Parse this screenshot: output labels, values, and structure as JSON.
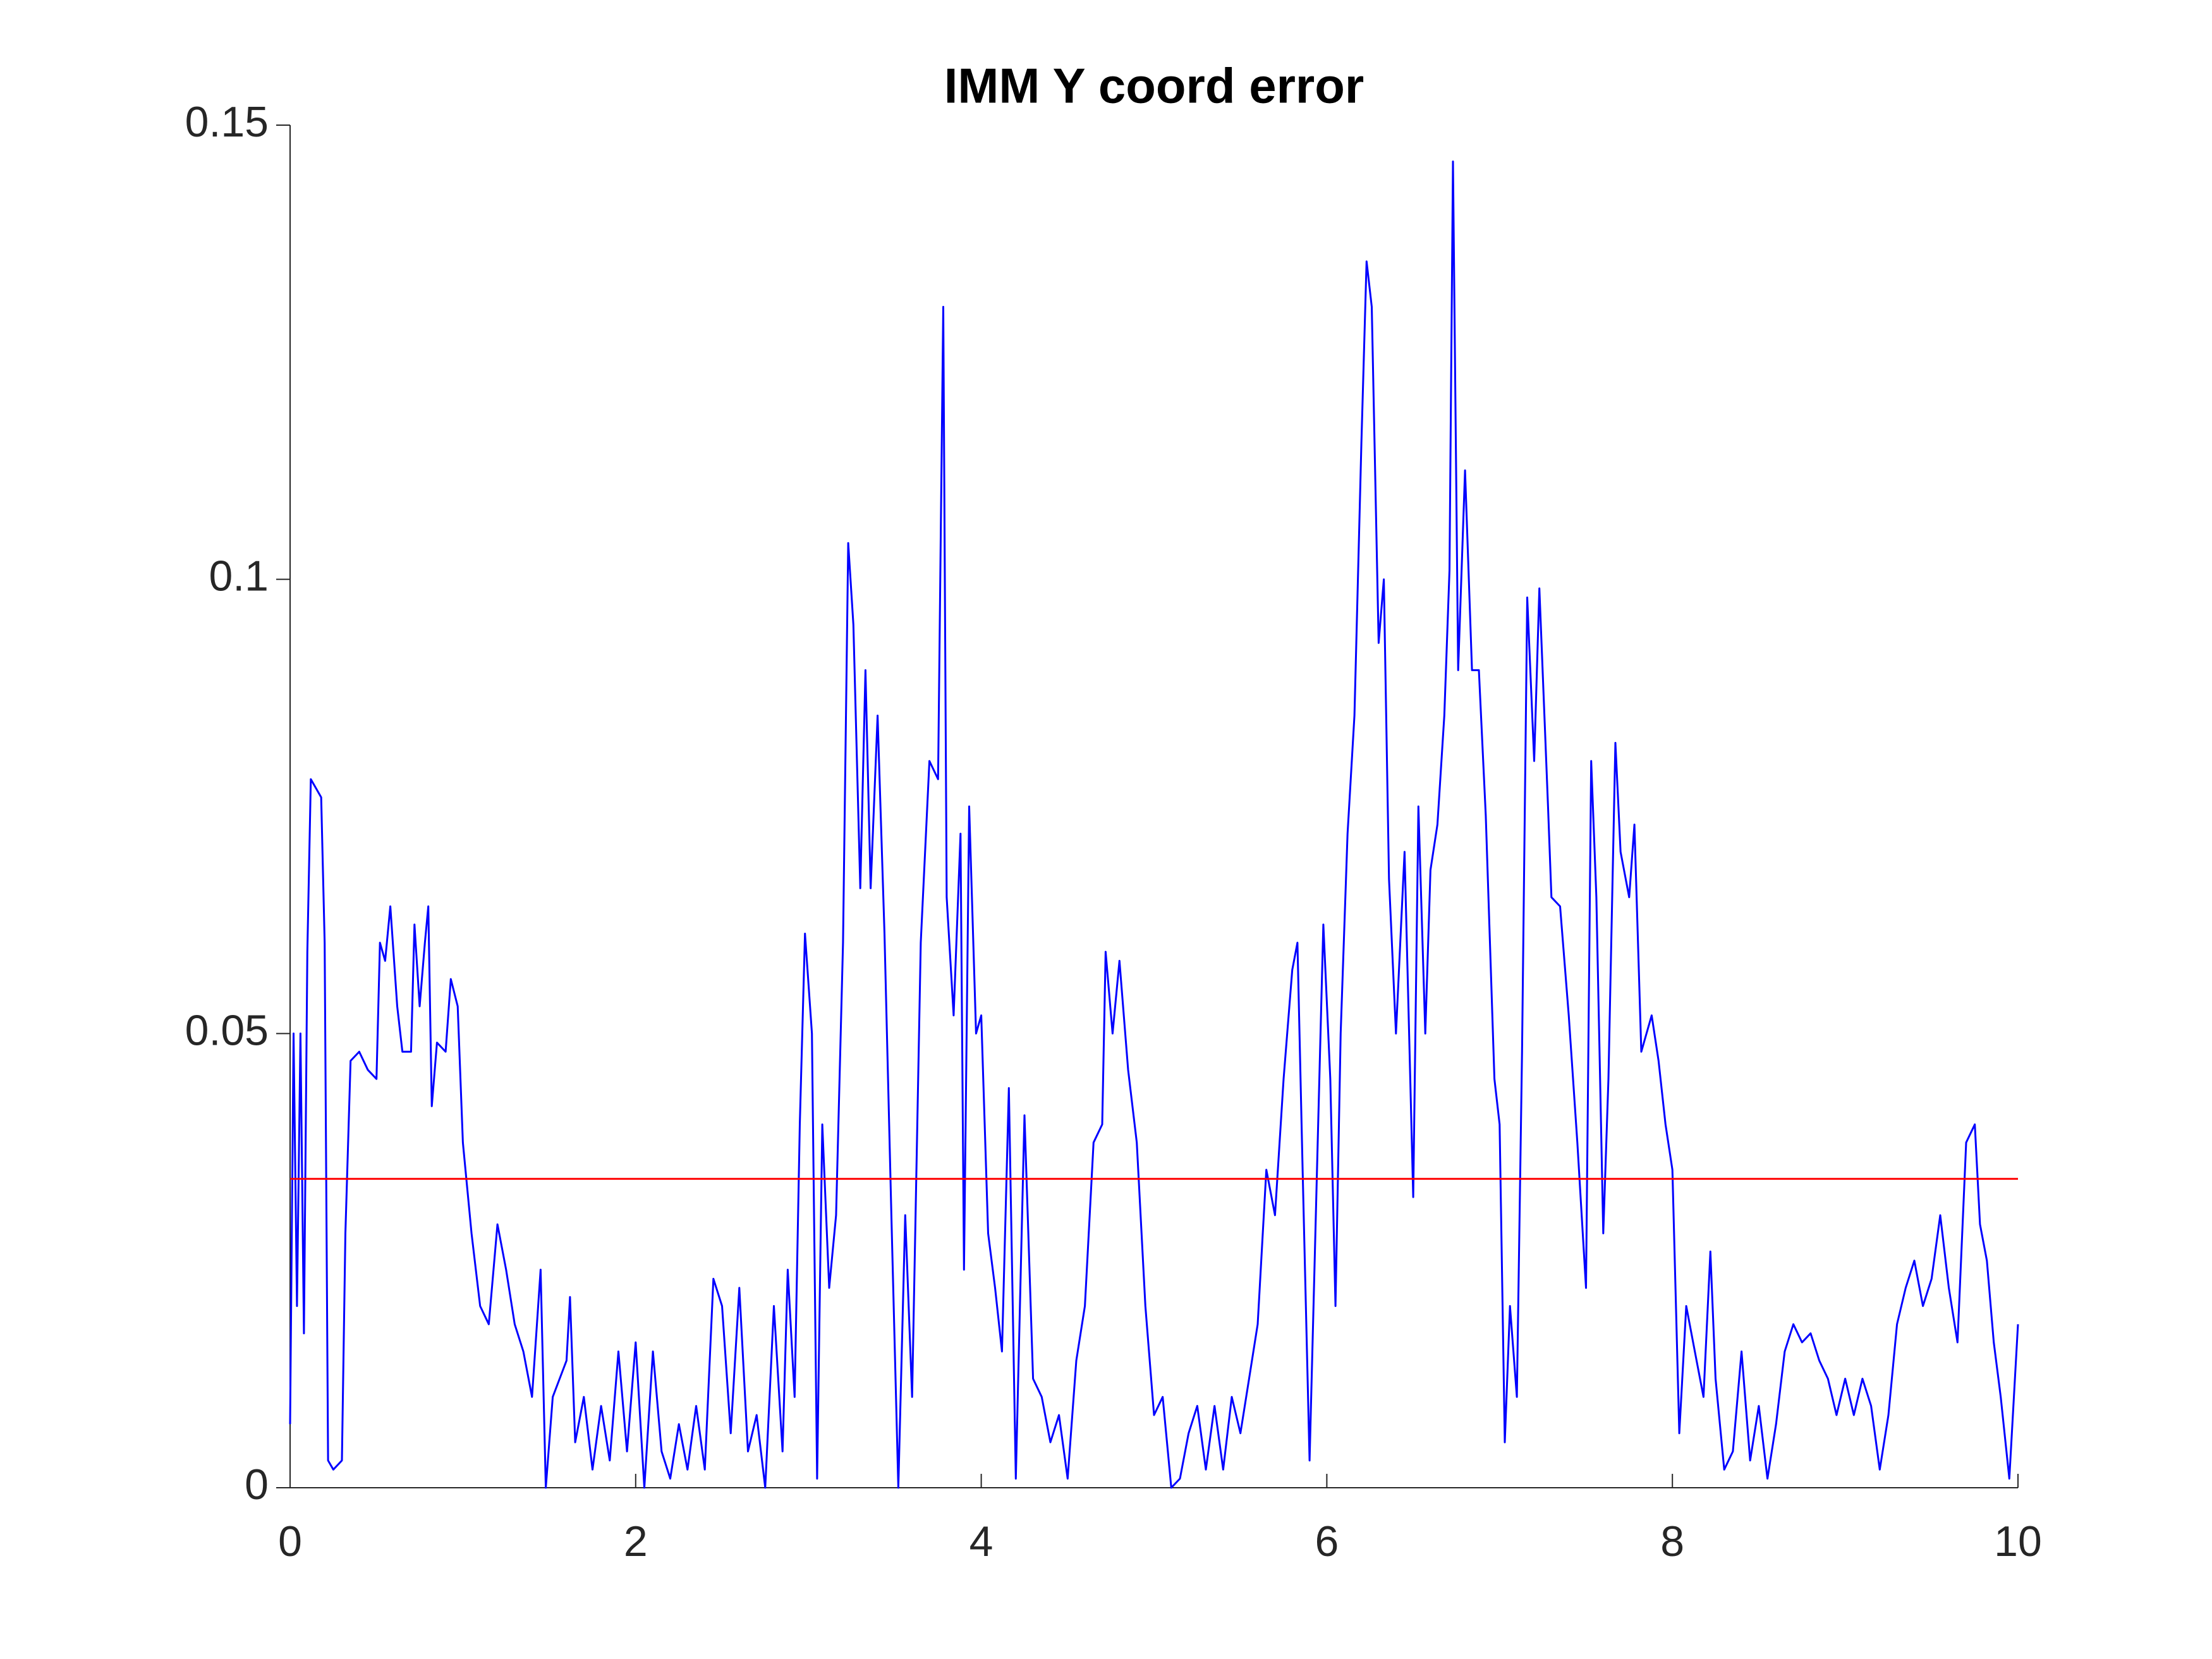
{
  "chart_data": {
    "type": "line",
    "title": "IMM Y coord error",
    "xlim": [
      0,
      10
    ],
    "ylim": [
      0,
      0.15
    ],
    "xticks": [
      0,
      2,
      4,
      6,
      8,
      10
    ],
    "yticks": [
      0,
      0.05,
      0.1,
      0.15
    ],
    "grid": false,
    "series": [
      {
        "color": "#0000ff",
        "x": [
          0,
          0.02,
          0.04,
          0.06,
          0.08,
          0.1,
          0.12,
          0.15,
          0.18,
          0.2,
          0.22,
          0.25,
          0.3,
          0.32,
          0.35,
          0.4,
          0.45,
          0.5,
          0.52,
          0.55,
          0.58,
          0.62,
          0.65,
          0.7,
          0.72,
          0.75,
          0.78,
          0.8,
          0.82,
          0.85,
          0.9,
          0.93,
          0.97,
          1.0,
          1.05,
          1.1,
          1.15,
          1.2,
          1.25,
          1.3,
          1.35,
          1.4,
          1.45,
          1.48,
          1.52,
          1.6,
          1.62,
          1.65,
          1.7,
          1.75,
          1.8,
          1.85,
          1.9,
          1.95,
          2.0,
          2.05,
          2.1,
          2.15,
          2.2,
          2.25,
          2.3,
          2.35,
          2.4,
          2.45,
          2.5,
          2.55,
          2.6,
          2.65,
          2.7,
          2.75,
          2.8,
          2.85,
          2.88,
          2.92,
          2.95,
          2.98,
          3.02,
          3.05,
          3.08,
          3.12,
          3.16,
          3.2,
          3.23,
          3.26,
          3.3,
          3.33,
          3.36,
          3.4,
          3.44,
          3.48,
          3.52,
          3.56,
          3.6,
          3.65,
          3.7,
          3.75,
          3.78,
          3.8,
          3.84,
          3.88,
          3.9,
          3.93,
          3.97,
          4.0,
          4.04,
          4.08,
          4.12,
          4.16,
          4.2,
          4.25,
          4.3,
          4.35,
          4.4,
          4.45,
          4.5,
          4.55,
          4.6,
          4.65,
          4.7,
          4.72,
          4.76,
          4.8,
          4.85,
          4.9,
          4.95,
          5.0,
          5.05,
          5.1,
          5.15,
          5.2,
          5.25,
          5.3,
          5.35,
          5.4,
          5.45,
          5.5,
          5.55,
          5.6,
          5.65,
          5.7,
          5.75,
          5.8,
          5.83,
          5.86,
          5.9,
          5.95,
          5.98,
          6.02,
          6.05,
          6.08,
          6.12,
          6.16,
          6.2,
          6.23,
          6.26,
          6.3,
          6.33,
          6.36,
          6.4,
          6.45,
          6.5,
          6.53,
          6.57,
          6.6,
          6.64,
          6.68,
          6.71,
          6.73,
          6.76,
          6.8,
          6.84,
          6.88,
          6.92,
          6.97,
          7.0,
          7.03,
          7.06,
          7.1,
          7.13,
          7.16,
          7.2,
          7.23,
          7.28,
          7.3,
          7.35,
          7.4,
          7.45,
          7.5,
          7.53,
          7.56,
          7.6,
          7.63,
          7.67,
          7.7,
          7.75,
          7.78,
          7.82,
          7.88,
          7.92,
          7.96,
          8.0,
          8.04,
          8.08,
          8.13,
          8.18,
          8.22,
          8.25,
          8.3,
          8.35,
          8.4,
          8.45,
          8.5,
          8.55,
          8.6,
          8.65,
          8.7,
          8.75,
          8.8,
          8.85,
          8.9,
          8.95,
          9.0,
          9.05,
          9.1,
          9.15,
          9.2,
          9.25,
          9.3,
          9.35,
          9.4,
          9.45,
          9.5,
          9.55,
          9.6,
          9.65,
          9.7,
          9.75,
          9.78,
          9.82,
          9.86,
          9.9,
          9.95,
          10.0
        ],
        "values": [
          0.007,
          0.05,
          0.02,
          0.05,
          0.017,
          0.059,
          0.078,
          0.077,
          0.076,
          0.06,
          0.003,
          0.002,
          0.003,
          0.028,
          0.047,
          0.048,
          0.046,
          0.045,
          0.06,
          0.058,
          0.064,
          0.053,
          0.048,
          0.048,
          0.062,
          0.053,
          0.06,
          0.064,
          0.042,
          0.049,
          0.048,
          0.056,
          0.053,
          0.038,
          0.028,
          0.02,
          0.018,
          0.029,
          0.024,
          0.018,
          0.015,
          0.01,
          0.024,
          0.0,
          0.01,
          0.014,
          0.021,
          0.005,
          0.01,
          0.002,
          0.009,
          0.003,
          0.015,
          0.004,
          0.016,
          0.0,
          0.015,
          0.004,
          0.001,
          0.007,
          0.002,
          0.009,
          0.002,
          0.023,
          0.02,
          0.006,
          0.022,
          0.004,
          0.008,
          0.0,
          0.02,
          0.004,
          0.024,
          0.01,
          0.04,
          0.061,
          0.05,
          0.001,
          0.04,
          0.022,
          0.03,
          0.06,
          0.104,
          0.095,
          0.066,
          0.09,
          0.066,
          0.085,
          0.061,
          0.03,
          0.0,
          0.03,
          0.01,
          0.06,
          0.08,
          0.078,
          0.13,
          0.065,
          0.052,
          0.072,
          0.024,
          0.075,
          0.05,
          0.052,
          0.028,
          0.022,
          0.015,
          0.044,
          0.001,
          0.041,
          0.012,
          0.01,
          0.005,
          0.008,
          0.001,
          0.014,
          0.02,
          0.038,
          0.04,
          0.059,
          0.05,
          0.058,
          0.046,
          0.038,
          0.02,
          0.008,
          0.01,
          0.0,
          0.001,
          0.006,
          0.009,
          0.002,
          0.009,
          0.002,
          0.01,
          0.006,
          0.012,
          0.018,
          0.035,
          0.03,
          0.045,
          0.057,
          0.06,
          0.035,
          0.003,
          0.04,
          0.062,
          0.045,
          0.02,
          0.05,
          0.072,
          0.085,
          0.115,
          0.135,
          0.13,
          0.093,
          0.1,
          0.067,
          0.05,
          0.07,
          0.032,
          0.075,
          0.05,
          0.068,
          0.073,
          0.085,
          0.101,
          0.146,
          0.09,
          0.112,
          0.09,
          0.09,
          0.074,
          0.045,
          0.04,
          0.005,
          0.02,
          0.01,
          0.048,
          0.098,
          0.08,
          0.099,
          0.075,
          0.065,
          0.064,
          0.052,
          0.038,
          0.022,
          0.08,
          0.065,
          0.028,
          0.045,
          0.082,
          0.07,
          0.065,
          0.073,
          0.048,
          0.052,
          0.047,
          0.04,
          0.035,
          0.006,
          0.02,
          0.015,
          0.01,
          0.026,
          0.012,
          0.002,
          0.004,
          0.015,
          0.003,
          0.009,
          0.001,
          0.007,
          0.015,
          0.018,
          0.016,
          0.017,
          0.014,
          0.012,
          0.008,
          0.012,
          0.008,
          0.012,
          0.009,
          0.002,
          0.008,
          0.018,
          0.022,
          0.025,
          0.02,
          0.023,
          0.03,
          0.022,
          0.016,
          0.038,
          0.04,
          0.029,
          0.025,
          0.016,
          0.01,
          0.001,
          0.018
        ]
      },
      {
        "color": "#ff0000",
        "x": [
          0,
          10
        ],
        "values": [
          0.034,
          0.034
        ]
      }
    ]
  }
}
